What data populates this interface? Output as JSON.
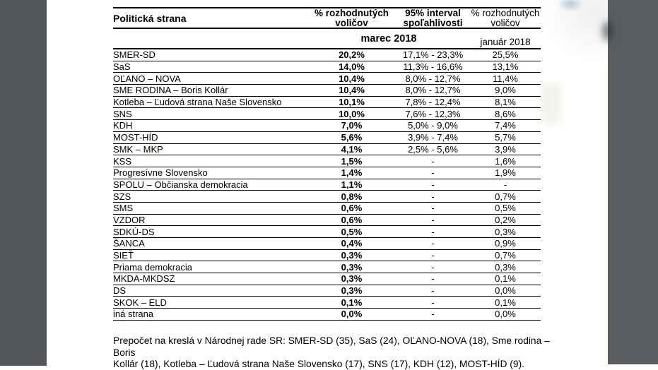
{
  "colors": {
    "strip_left": "#53575a",
    "strip_right": "#595d60",
    "page": "#fffffe",
    "line": "#000000"
  },
  "table": {
    "header": {
      "party": "Politická strana",
      "decided_voters_march": "% rozhodnutých voličov",
      "confidence_interval": "95% interval spoľahlivosti",
      "decided_voters_january": "% rozhodnutých voličov",
      "period_march": "marec 2018",
      "period_january": "január 2018"
    },
    "rows": [
      {
        "party": "SMER-SD",
        "march": "20,2%",
        "interval": "17,1% - 23,3%",
        "january": "25,5%"
      },
      {
        "party": "SaS",
        "march": "14,0%",
        "interval": "11,3% - 16,6%",
        "january": "13,1%"
      },
      {
        "party": "OĽANO – NOVA",
        "march": "10,4%",
        "interval": "8,0% - 12,7%",
        "january": "11,4%"
      },
      {
        "party": "SME RODINA – Boris Kollár",
        "march": "10,4%",
        "interval": "8,0% - 12,7%",
        "january": "9,0%"
      },
      {
        "party": "Kotleba – Ľudová strana Naše Slovensko",
        "march": "10,1%",
        "interval": "7,8% - 12,4%",
        "january": "8,1%"
      },
      {
        "party": "SNS",
        "march": "10,0%",
        "interval": "7,6% - 12,3%",
        "january": "8,6%"
      },
      {
        "party": "KDH",
        "march": "7,0%",
        "interval": "5,0% - 9,0%",
        "january": "7,4%"
      },
      {
        "party": "MOST-HÍD",
        "march": "5,6%",
        "interval": "3,9% - 7,4%",
        "january": "5,7%"
      },
      {
        "party": "SMK – MKP",
        "march": "4,1%",
        "interval": "2,5% - 5,6%",
        "january": "3,9%"
      },
      {
        "party": "KSS",
        "march": "1,5%",
        "interval": "-",
        "january": "1,6%"
      },
      {
        "party": "Progresívne Slovensko",
        "march": "1,4%",
        "interval": "-",
        "january": "1,9%"
      },
      {
        "party": "SPOLU – Občianska demokracia",
        "march": "1,1%",
        "interval": "-",
        "january": "-"
      },
      {
        "party": "SZS",
        "march": "0,8%",
        "interval": "-",
        "january": "0,7%"
      },
      {
        "party": "SMS",
        "march": "0,6%",
        "interval": "-",
        "january": "0,5%"
      },
      {
        "party": "VZDOR",
        "march": "0,6%",
        "interval": "-",
        "january": "0,2%"
      },
      {
        "party": "SDKÚ-DS",
        "march": "0,5%",
        "interval": "-",
        "january": "0,3%"
      },
      {
        "party": "ŠANCA",
        "march": "0,4%",
        "interval": "-",
        "january": "0,9%"
      },
      {
        "party": "SIEŤ",
        "march": "0,3%",
        "interval": "-",
        "january": "0,7%"
      },
      {
        "party": "Priama demokracia",
        "march": "0,3%",
        "interval": "-",
        "january": "0,3%"
      },
      {
        "party": "MKDA-MKDSZ",
        "march": "0,3%",
        "interval": "-",
        "january": "0,1%"
      },
      {
        "party": "DS",
        "march": "0,3%",
        "interval": "-",
        "january": "0,0%"
      },
      {
        "party": "SKOK – ELD",
        "march": "0,1%",
        "interval": "-",
        "january": "0,1%"
      },
      {
        "party": "iná strana",
        "march": "0,0%",
        "interval": "-",
        "january": "0,0%"
      }
    ]
  },
  "footer_lines": [
    "Prepočet na kreslá v Národnej rade SR: SMER-SD (35), SaS (24), OĽANO-NOVA (18), Sme rodina – Boris",
    "Kollár (18), Kotleba – Ľudová strana Naše Slovensko (17), SNS (17), KDH (12), MOST-HÍD (9)."
  ]
}
